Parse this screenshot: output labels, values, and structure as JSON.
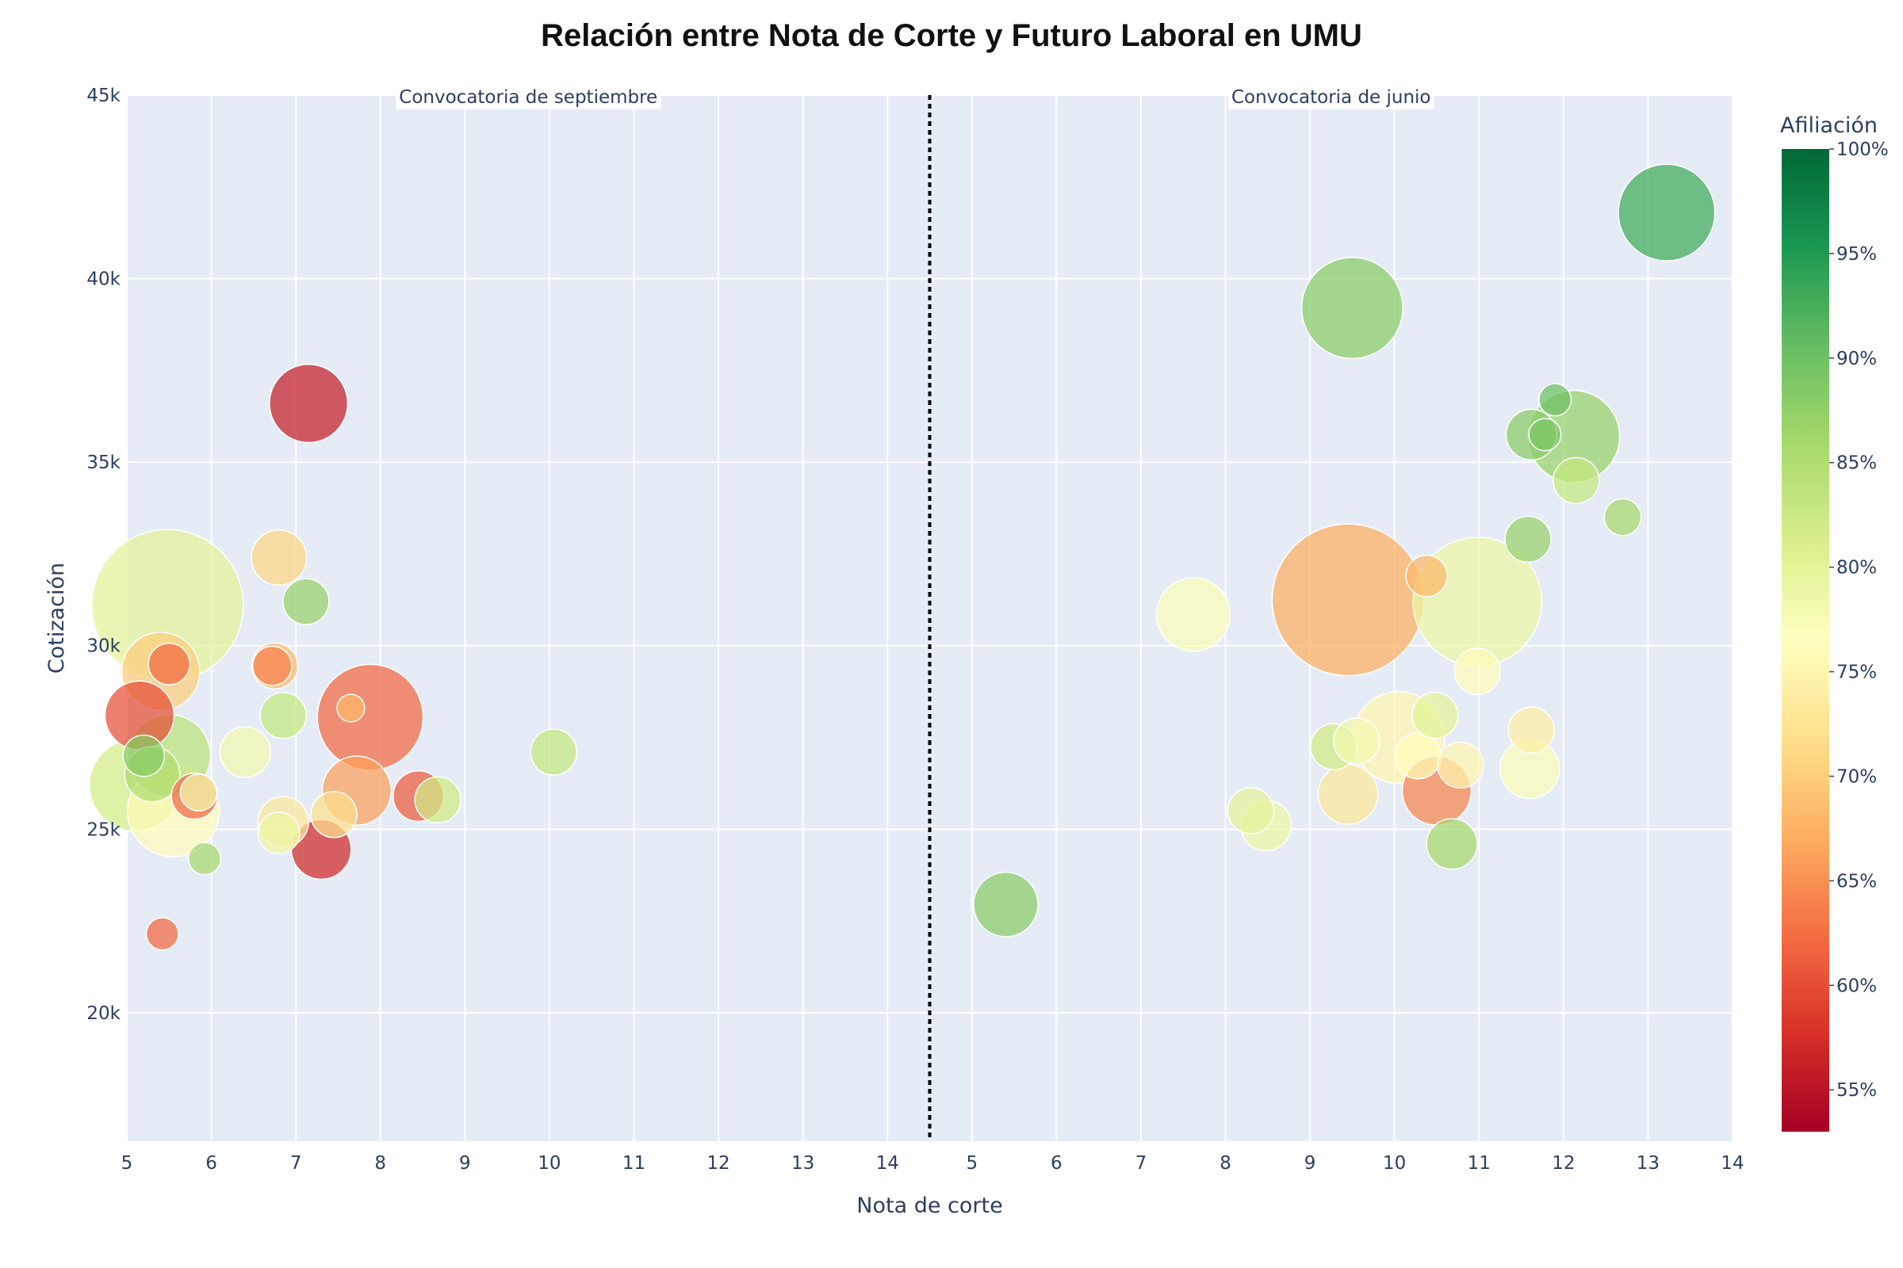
{
  "chart_data": {
    "type": "scatter",
    "title": "Relación entre Nota de Corte y Futuro Laboral en UMU",
    "xlabel": "Nota de corte",
    "ylabel": "Cotización",
    "ylim": [
      16500,
      45000
    ],
    "y_ticks": [
      20000,
      25000,
      30000,
      35000,
      40000,
      45000
    ],
    "y_tick_labels": [
      "20k",
      "25k",
      "30k",
      "35k",
      "40k",
      "45k"
    ],
    "grid": true,
    "colorbar": {
      "title": "Afiliación",
      "range": [
        53,
        100
      ],
      "ticks": [
        55,
        60,
        65,
        70,
        75,
        80,
        85,
        90,
        95,
        100
      ],
      "tick_labels": [
        "55%",
        "60%",
        "65%",
        "70%",
        "75%",
        "80%",
        "85%",
        "90%",
        "95%",
        "100%"
      ],
      "colorscale": [
        "#a50026",
        "#d73027",
        "#f46d43",
        "#fdae61",
        "#fee08b",
        "#ffffbf",
        "#d9ef8b",
        "#a6d96a",
        "#66bd63",
        "#1a9850",
        "#006837"
      ]
    },
    "panels": [
      {
        "name": "Convocatoria de septiembre",
        "xlim": [
          5,
          14.5
        ],
        "x_ticks": [
          5,
          6,
          7,
          8,
          9,
          10,
          11,
          12,
          13,
          14
        ],
        "points": [
          {
            "x": 5.48,
            "y": 31100,
            "color": 80,
            "size": 66
          },
          {
            "x": 5.1,
            "y": 26200,
            "color": 82,
            "size": 40
          },
          {
            "x": 5.15,
            "y": 28100,
            "color": 60,
            "size": 30
          },
          {
            "x": 5.2,
            "y": 27000,
            "color": 88,
            "size": 18
          },
          {
            "x": 5.3,
            "y": 26500,
            "color": 85,
            "size": 24
          },
          {
            "x": 5.4,
            "y": 29300,
            "color": 70,
            "size": 34
          },
          {
            "x": 5.5,
            "y": 27000,
            "color": 84,
            "size": 36
          },
          {
            "x": 5.5,
            "y": 29500,
            "color": 62,
            "size": 18
          },
          {
            "x": 5.55,
            "y": 25500,
            "color": 76,
            "size": 40
          },
          {
            "x": 5.8,
            "y": 25900,
            "color": 62,
            "size": 20
          },
          {
            "x": 5.85,
            "y": 26000,
            "color": 78,
            "size": 16
          },
          {
            "x": 5.42,
            "y": 22150,
            "color": 62,
            "size": 14
          },
          {
            "x": 5.92,
            "y": 24200,
            "color": 86,
            "size": 14
          },
          {
            "x": 6.4,
            "y": 27100,
            "color": 78,
            "size": 22
          },
          {
            "x": 6.75,
            "y": 29450,
            "color": 68,
            "size": 20
          },
          {
            "x": 6.72,
            "y": 29450,
            "color": 64,
            "size": 17
          },
          {
            "x": 6.8,
            "y": 32400,
            "color": 71,
            "size": 24
          },
          {
            "x": 6.8,
            "y": 24900,
            "color": 79,
            "size": 18
          },
          {
            "x": 6.85,
            "y": 25200,
            "color": 73,
            "size": 22
          },
          {
            "x": 6.85,
            "y": 28100,
            "color": 83,
            "size": 20
          },
          {
            "x": 7.12,
            "y": 31200,
            "color": 87,
            "size": 20
          },
          {
            "x": 7.15,
            "y": 36600,
            "color": 56,
            "size": 34
          },
          {
            "x": 7.3,
            "y": 24450,
            "color": 57,
            "size": 26
          },
          {
            "x": 7.45,
            "y": 25400,
            "color": 72,
            "size": 20
          },
          {
            "x": 7.72,
            "y": 26050,
            "color": 66,
            "size": 30
          },
          {
            "x": 7.65,
            "y": 28300,
            "color": 68,
            "size": 12
          },
          {
            "x": 7.88,
            "y": 28050,
            "color": 62,
            "size": 46
          },
          {
            "x": 8.45,
            "y": 25900,
            "color": 61,
            "size": 22
          },
          {
            "x": 8.68,
            "y": 25800,
            "color": 82,
            "size": 20
          },
          {
            "x": 10.05,
            "y": 27100,
            "color": 83,
            "size": 20
          }
        ]
      },
      {
        "name": "Convocatoria de junio",
        "xlim": [
          4.5,
          14
        ],
        "x_ticks": [
          5,
          6,
          7,
          8,
          9,
          10,
          11,
          12,
          13,
          14
        ],
        "points": [
          {
            "x": 5.4,
            "y": 22950,
            "color": 88,
            "size": 28
          },
          {
            "x": 7.62,
            "y": 30850,
            "color": 77,
            "size": 32
          },
          {
            "x": 8.3,
            "y": 25500,
            "color": 80,
            "size": 20
          },
          {
            "x": 8.48,
            "y": 25100,
            "color": 79,
            "size": 22
          },
          {
            "x": 9.28,
            "y": 27250,
            "color": 82,
            "size": 20
          },
          {
            "x": 9.45,
            "y": 25950,
            "color": 73,
            "size": 26
          },
          {
            "x": 9.45,
            "y": 31250,
            "color": 67,
            "size": 66
          },
          {
            "x": 9.5,
            "y": 39200,
            "color": 88,
            "size": 44
          },
          {
            "x": 9.55,
            "y": 27400,
            "color": 78,
            "size": 20
          },
          {
            "x": 10.05,
            "y": 27500,
            "color": 75,
            "size": 40
          },
          {
            "x": 10.28,
            "y": 27000,
            "color": 76,
            "size": 20
          },
          {
            "x": 10.38,
            "y": 31900,
            "color": 68,
            "size": 18
          },
          {
            "x": 10.48,
            "y": 28100,
            "color": 80,
            "size": 20
          },
          {
            "x": 10.5,
            "y": 26050,
            "color": 64,
            "size": 30
          },
          {
            "x": 10.68,
            "y": 24600,
            "color": 86,
            "size": 22
          },
          {
            "x": 10.78,
            "y": 26750,
            "color": 75,
            "size": 20
          },
          {
            "x": 10.98,
            "y": 29300,
            "color": 76,
            "size": 20
          },
          {
            "x": 10.98,
            "y": 31200,
            "color": 79,
            "size": 56
          },
          {
            "x": 11.58,
            "y": 32900,
            "color": 87,
            "size": 20
          },
          {
            "x": 11.6,
            "y": 26650,
            "color": 77,
            "size": 26
          },
          {
            "x": 11.62,
            "y": 27700,
            "color": 74,
            "size": 20
          },
          {
            "x": 11.62,
            "y": 35750,
            "color": 88,
            "size": 22
          },
          {
            "x": 11.78,
            "y": 35750,
            "color": 89,
            "size": 14
          },
          {
            "x": 11.9,
            "y": 36700,
            "color": 90,
            "size": 14
          },
          {
            "x": 12.12,
            "y": 35700,
            "color": 87,
            "size": 40
          },
          {
            "x": 12.15,
            "y": 34500,
            "color": 83,
            "size": 20
          },
          {
            "x": 12.7,
            "y": 33500,
            "color": 86,
            "size": 16
          },
          {
            "x": 13.22,
            "y": 41800,
            "color": 93,
            "size": 42
          }
        ]
      }
    ]
  }
}
